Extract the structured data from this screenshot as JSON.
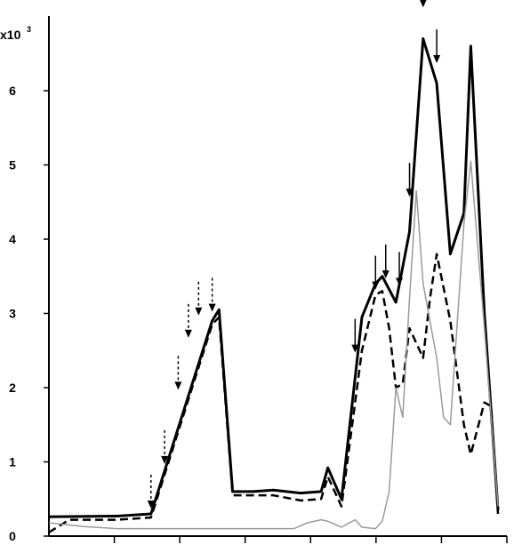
{
  "chart_data": {
    "type": "line",
    "title": "",
    "xlabel": "",
    "ylabel": "",
    "y_multiplier_label": "x10",
    "y_multiplier_exponent": "3",
    "ylim": [
      0,
      7
    ],
    "y_ticks": [
      "0",
      "1",
      "2",
      "3",
      "4",
      "5",
      "6"
    ],
    "xlim": [
      0,
      66
    ],
    "x_tick_count": 7,
    "grid": false,
    "legend": "none",
    "series": [
      {
        "style": "thick-solid",
        "color": "#000000",
        "points": [
          [
            0,
            0.26
          ],
          [
            10,
            0.27
          ],
          [
            15,
            0.3
          ],
          [
            24,
            2.9
          ],
          [
            25,
            3.05
          ],
          [
            27,
            0.6
          ],
          [
            30,
            0.6
          ],
          [
            33,
            0.62
          ],
          [
            37,
            0.58
          ],
          [
            40,
            0.6
          ],
          [
            41,
            0.92
          ],
          [
            43,
            0.5
          ],
          [
            46,
            2.95
          ],
          [
            48,
            3.4
          ],
          [
            49,
            3.5
          ],
          [
            51,
            3.15
          ],
          [
            53,
            4.1
          ],
          [
            55,
            6.7
          ],
          [
            57,
            6.1
          ],
          [
            59,
            3.8
          ],
          [
            61,
            4.35
          ],
          [
            62,
            6.6
          ],
          [
            64,
            3.0
          ],
          [
            66,
            0.35
          ]
        ]
      },
      {
        "style": "dashed",
        "color": "#000000",
        "points": [
          [
            0,
            0.05
          ],
          [
            3,
            0.22
          ],
          [
            10,
            0.22
          ],
          [
            15,
            0.25
          ],
          [
            24,
            2.85
          ],
          [
            25,
            2.95
          ],
          [
            27,
            0.55
          ],
          [
            30,
            0.55
          ],
          [
            33,
            0.55
          ],
          [
            37,
            0.48
          ],
          [
            40,
            0.5
          ],
          [
            41,
            0.8
          ],
          [
            43,
            0.4
          ],
          [
            46,
            2.5
          ],
          [
            48,
            3.25
          ],
          [
            49,
            3.3
          ],
          [
            50,
            2.8
          ],
          [
            51,
            2.0
          ],
          [
            52,
            2.05
          ],
          [
            53,
            2.8
          ],
          [
            55,
            2.4
          ],
          [
            56,
            3.2
          ],
          [
            57,
            3.8
          ],
          [
            59,
            2.9
          ],
          [
            61,
            1.5
          ],
          [
            62,
            1.1
          ],
          [
            64,
            1.8
          ],
          [
            65,
            1.75
          ],
          [
            66,
            0.3
          ]
        ]
      },
      {
        "style": "thin-gray",
        "color": "#9a9a9a",
        "points": [
          [
            0,
            0.18
          ],
          [
            5,
            0.13
          ],
          [
            10,
            0.1
          ],
          [
            20,
            0.1
          ],
          [
            30,
            0.1
          ],
          [
            36,
            0.1
          ],
          [
            38,
            0.18
          ],
          [
            40,
            0.22
          ],
          [
            41,
            0.2
          ],
          [
            43,
            0.12
          ],
          [
            45,
            0.22
          ],
          [
            46,
            0.12
          ],
          [
            48,
            0.1
          ],
          [
            49,
            0.2
          ],
          [
            50,
            0.6
          ],
          [
            51,
            2.0
          ],
          [
            52,
            1.6
          ],
          [
            53,
            3.2
          ],
          [
            54,
            4.65
          ],
          [
            55,
            3.4
          ],
          [
            57,
            2.4
          ],
          [
            58,
            1.6
          ],
          [
            59,
            1.5
          ],
          [
            61,
            4.2
          ],
          [
            62,
            5.05
          ],
          [
            64,
            2.8
          ],
          [
            66,
            0.4
          ]
        ]
      }
    ],
    "arrows": [
      {
        "style": "dashed",
        "x": 15,
        "y": 0.3
      },
      {
        "style": "dashed",
        "x": 17,
        "y": 0.9
      },
      {
        "style": "dashed",
        "x": 19,
        "y": 1.9
      },
      {
        "style": "dashed",
        "x": 20.5,
        "y": 2.6
      },
      {
        "style": "dashed",
        "x": 22,
        "y": 2.9
      },
      {
        "style": "dashed",
        "x": 24,
        "y": 2.95
      },
      {
        "style": "solid",
        "x": 45,
        "y": 2.4
      },
      {
        "style": "solid",
        "x": 48,
        "y": 3.25
      },
      {
        "style": "solid",
        "x": 49.5,
        "y": 3.4
      },
      {
        "style": "solid",
        "x": 51.5,
        "y": 3.3
      },
      {
        "style": "solid",
        "x": 53,
        "y": 4.5
      },
      {
        "style": "solid",
        "x": 55,
        "y": 7.05
      },
      {
        "style": "solid",
        "x": 57,
        "y": 6.3
      }
    ]
  }
}
